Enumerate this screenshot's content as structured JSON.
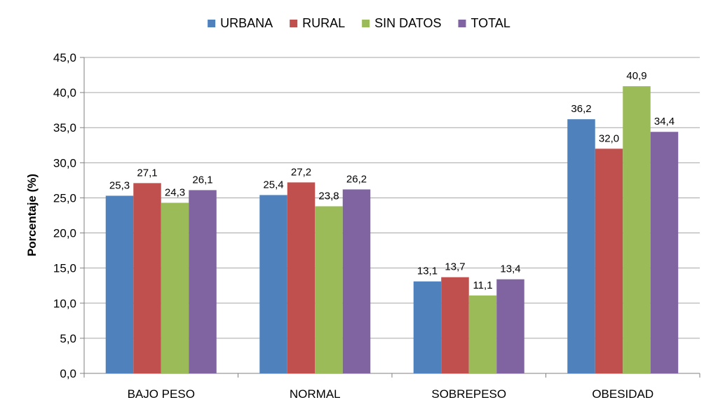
{
  "chart_data": {
    "type": "bar",
    "title": "",
    "xlabel": "",
    "ylabel": "Porcentaje (%)",
    "ylim": [
      0,
      45
    ],
    "ytick_step": 5,
    "decimal_separator": ",",
    "grid": true,
    "legend_position": "top-center",
    "categories": [
      "BAJO PESO",
      "NORMAL",
      "SOBREPESO",
      "OBESIDAD"
    ],
    "series": [
      {
        "name": "URBANA",
        "color": "#4F81BD",
        "values": [
          25.3,
          25.4,
          13.1,
          36.2
        ]
      },
      {
        "name": "RURAL",
        "color": "#C0504D",
        "values": [
          27.1,
          27.2,
          13.7,
          32.0
        ]
      },
      {
        "name": "SIN DATOS",
        "color": "#9BBB59",
        "values": [
          24.3,
          23.8,
          11.1,
          40.9
        ]
      },
      {
        "name": "TOTAL",
        "color": "#8064A2",
        "values": [
          26.1,
          26.2,
          13.4,
          34.4
        ]
      }
    ]
  }
}
